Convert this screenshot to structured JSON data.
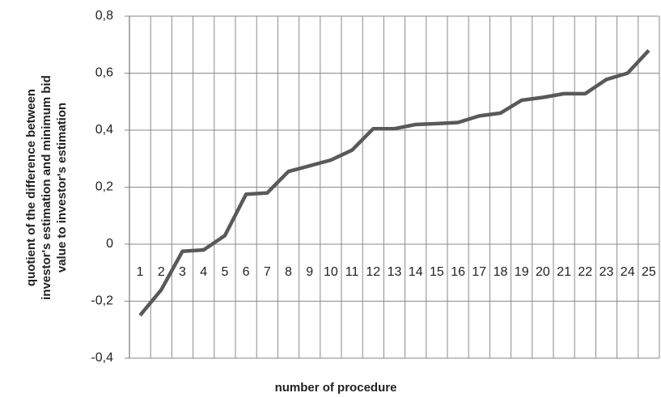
{
  "chart_data": {
    "type": "line",
    "xlabel": "number of procedure",
    "ylabel": [
      "quotient of the difference between",
      "investor's estimation and minimum bid",
      "value to investor's estimation"
    ],
    "categories": [
      "1",
      "2",
      "3",
      "4",
      "5",
      "6",
      "7",
      "8",
      "9",
      "10",
      "11",
      "12",
      "13",
      "14",
      "15",
      "16",
      "17",
      "18",
      "19",
      "20",
      "21",
      "22",
      "23",
      "24",
      "25"
    ],
    "series": [
      {
        "color": "#595959",
        "values": [
          -0.25,
          -0.16,
          -0.025,
          -0.02,
          0.03,
          0.175,
          0.18,
          0.255,
          0.275,
          0.295,
          0.33,
          0.405,
          0.405,
          0.42,
          0.423,
          0.427,
          0.45,
          0.46,
          0.505,
          0.515,
          0.528,
          0.528,
          0.578,
          0.6,
          0.68
        ]
      }
    ],
    "ylim": [
      -0.4,
      0.8
    ],
    "yticks": [
      {
        "value": -0.4,
        "label": "-0,4"
      },
      {
        "value": -0.2,
        "label": "-0,2"
      },
      0,
      {
        "value": 0.2,
        "label": "0,2"
      },
      {
        "value": 0.4,
        "label": "0,4"
      },
      {
        "value": 0.6,
        "label": "0,6"
      },
      {
        "value": 0.8,
        "label": "0,8"
      }
    ],
    "grid": true
  }
}
